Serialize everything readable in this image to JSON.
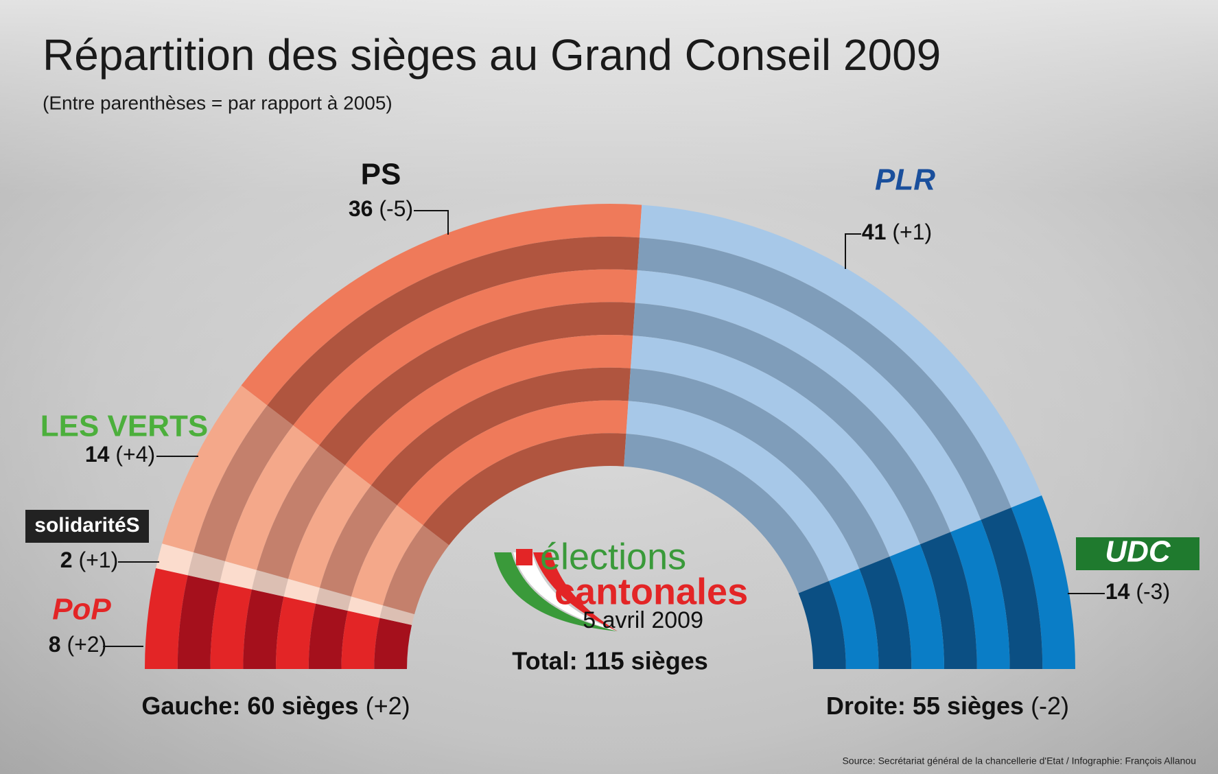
{
  "chart_data": {
    "type": "parliament",
    "title": "Répartition des sièges au Grand Conseil 2009",
    "subtitle": "(Entre parenthèses = par rapport à 2005)",
    "series": [
      {
        "name": "PoP",
        "color": "#e32526",
        "alt_color": "#a5101c",
        "values": [
          8
        ],
        "changes": [
          2
        ],
        "change_labels": [
          "(+2)"
        ]
      },
      {
        "name": "solidaritéS",
        "color": "#fbdccd",
        "alt_color": "#dcbfb3",
        "values": [
          2
        ],
        "changes": [
          1
        ],
        "change_labels": [
          "(+1)"
        ]
      },
      {
        "name": "LES VERTS",
        "color": "#f4a88a",
        "alt_color": "#c4806c",
        "values": [
          14
        ],
        "changes": [
          4
        ],
        "change_labels": [
          "(+4)"
        ]
      },
      {
        "name": "PS",
        "color": "#ef7a5a",
        "alt_color": "#b0553f",
        "values": [
          36
        ],
        "changes": [
          -5
        ],
        "change_labels": [
          "(-5)"
        ]
      },
      {
        "name": "PLR",
        "color": "#a7c8e8",
        "alt_color": "#7f9dba",
        "values": [
          41
        ],
        "changes": [
          1
        ],
        "change_labels": [
          "(+1)"
        ]
      },
      {
        "name": "UDC",
        "color": "#0a7dc6",
        "alt_color": "#0b4f83",
        "values": [
          14
        ],
        "changes": [
          -3
        ],
        "change_labels": [
          "(-3)"
        ]
      }
    ],
    "name_colors": [
      "#e32526",
      "#ffffff",
      "#4caf3c",
      "#111111",
      "#1a4f9c",
      "#ffffff"
    ],
    "logo": {
      "line1": "élections",
      "line2": "cantonales",
      "date": "5 avril 2009"
    },
    "total": "Total: 115 sièges",
    "blocs": [
      {
        "label": "Gauche: 60 sièges",
        "change": "(+2)"
      },
      {
        "label": "Droite: 55 sièges",
        "change": "(-2)"
      }
    ],
    "source": "Source: Secrétariat général de la chancellerie d'Etat / Infographie: François Allanou"
  }
}
